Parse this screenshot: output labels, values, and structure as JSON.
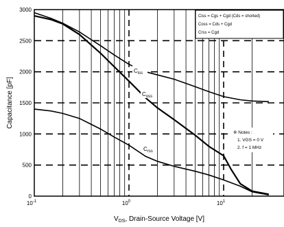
{
  "chart_data": {
    "type": "line",
    "xlabel": "V",
    "xlabel_sub": "DS",
    "xlabel_rest": ", Drain-Source Voltage [V]",
    "ylabel": "Capacitance [pF]",
    "x_scale": "log",
    "xlim": [
      0.1,
      30
    ],
    "ylim": [
      0,
      3000
    ],
    "x_ticks": [
      {
        "value": 0.1,
        "base": "10",
        "exp": "-1"
      },
      {
        "value": 1,
        "base": "10",
        "exp": "0"
      },
      {
        "value": 10,
        "base": "10",
        "exp": "1"
      }
    ],
    "y_ticks": [
      0,
      500,
      1000,
      1500,
      2000,
      2500,
      3000
    ],
    "grid": true,
    "legend": {
      "placement": "top-right",
      "lines": [
        "Ciss = Cgs + Cgd (Cds = shorted)",
        "Coss = Cds + Cgd",
        "Crss = Cgd"
      ]
    },
    "notes": {
      "title": "※ Notes :",
      "items": [
        "1. VGS = 0 V",
        "2. f = 1 MHz"
      ]
    },
    "series": [
      {
        "name": "Ciss",
        "label_main": "C",
        "label_sub": "iss",
        "points": [
          [
            0.1,
            2950
          ],
          [
            0.15,
            2860
          ],
          [
            0.2,
            2780
          ],
          [
            0.3,
            2640
          ],
          [
            0.5,
            2420
          ],
          [
            0.7,
            2270
          ],
          [
            1,
            2120
          ],
          [
            1.5,
            2000
          ],
          [
            2,
            1950
          ],
          [
            3,
            1880
          ],
          [
            5,
            1760
          ],
          [
            7,
            1680
          ],
          [
            10,
            1600
          ],
          [
            15,
            1550
          ],
          [
            20,
            1530
          ],
          [
            30,
            1520
          ]
        ]
      },
      {
        "name": "Coss",
        "label_main": "C",
        "label_sub": "oss",
        "points": [
          [
            0.1,
            2900
          ],
          [
            0.15,
            2840
          ],
          [
            0.2,
            2770
          ],
          [
            0.3,
            2600
          ],
          [
            0.5,
            2300
          ],
          [
            0.7,
            2080
          ],
          [
            1,
            1850
          ],
          [
            1.5,
            1580
          ],
          [
            2,
            1420
          ],
          [
            3,
            1230
          ],
          [
            5,
            980
          ],
          [
            7,
            800
          ],
          [
            10,
            650
          ],
          [
            12,
            430
          ],
          [
            15,
            200
          ],
          [
            20,
            80
          ],
          [
            30,
            30
          ]
        ]
      },
      {
        "name": "Crss",
        "label_main": "C",
        "label_sub": "rss",
        "points": [
          [
            0.1,
            1400
          ],
          [
            0.15,
            1370
          ],
          [
            0.2,
            1330
          ],
          [
            0.3,
            1250
          ],
          [
            0.5,
            1080
          ],
          [
            0.7,
            950
          ],
          [
            1,
            820
          ],
          [
            1.5,
            640
          ],
          [
            2,
            560
          ],
          [
            3,
            480
          ],
          [
            5,
            400
          ],
          [
            7,
            340
          ],
          [
            10,
            260
          ],
          [
            15,
            160
          ],
          [
            20,
            70
          ],
          [
            30,
            20
          ]
        ]
      }
    ]
  }
}
